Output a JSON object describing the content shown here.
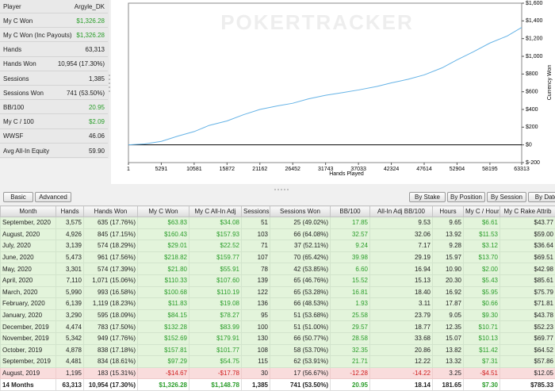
{
  "stats": {
    "rows": [
      [
        "Player",
        "Argyle_DK"
      ],
      [
        "My C Won",
        "$1,326.28"
      ],
      [
        "My C Won (Inc Payouts)",
        "$1,326.28"
      ],
      [
        "Hands",
        "63,313"
      ],
      [
        "Hands Won",
        "10,954 (17.30%)"
      ],
      [
        "Sessions",
        "1,385"
      ],
      [
        "Sessions Won",
        "741 (53.50%)"
      ],
      [
        "BB/100",
        "20.95"
      ],
      [
        "My C / 100",
        "$2.09"
      ],
      [
        "WWSF",
        "46.06"
      ],
      [
        "Avg All-In Equity",
        "59.90"
      ]
    ]
  },
  "chart_data": {
    "type": "line",
    "watermark": "POKERTRACKER",
    "x_label": "Hands Played",
    "y_label": "Currency Won",
    "x": [
      1,
      2600,
      5291,
      8000,
      10581,
      13000,
      15872,
      18500,
      21162,
      24000,
      26452,
      29000,
      31743,
      34500,
      37033,
      40000,
      42324,
      45000,
      47614,
      50500,
      52904,
      55500,
      58195,
      61000,
      63313
    ],
    "series": [
      {
        "color": "#66b3e6",
        "values": [
          0,
          10,
          40,
          100,
          150,
          220,
          270,
          340,
          400,
          440,
          470,
          520,
          560,
          590,
          620,
          660,
          700,
          740,
          790,
          870,
          960,
          1050,
          1150,
          1230,
          1326
        ]
      }
    ],
    "xlim": [
      1,
      63313
    ],
    "xticks": [
      1,
      5291,
      10581,
      15872,
      21162,
      26452,
      31743,
      37033,
      42324,
      47614,
      52904,
      58195,
      63313
    ],
    "ylim": [
      -200,
      1600
    ],
    "yticks": [
      {
        "value": -200,
        "label": "$-200"
      },
      {
        "value": 0,
        "label": "$0"
      },
      {
        "value": 200,
        "label": "$200"
      },
      {
        "value": 400,
        "label": "$400"
      },
      {
        "value": 600,
        "label": "$600"
      },
      {
        "value": 800,
        "label": "$800"
      },
      {
        "value": 1000,
        "label": "$1,000"
      },
      {
        "value": 1200,
        "label": "$1,200"
      },
      {
        "value": 1400,
        "label": "$1,400"
      },
      {
        "value": 1600,
        "label": "$1,600"
      }
    ]
  },
  "tabs": {
    "left": [
      "Basic",
      "Advanced"
    ],
    "right": [
      "By Stake",
      "By Position",
      "By Session",
      "By Date"
    ]
  },
  "table": {
    "columns": [
      "Month",
      "Hands",
      "Hands Won",
      "My C Won",
      "My C All-In Adj",
      "Sessions",
      "Sessions Won",
      "BB/100",
      "All-In Adj BB/100",
      "Hours",
      "My C / Hour",
      "My C Rake Attrib"
    ],
    "rows": [
      [
        "September, 2020",
        "3,575",
        "635 (17.76%)",
        "$63.83",
        "$34.08",
        "51",
        "25 (49.02%)",
        "17.85",
        "9.53",
        "9.65",
        "$6.61",
        "$43.77"
      ],
      [
        "August, 2020",
        "4,926",
        "845 (17.15%)",
        "$160.43",
        "$157.93",
        "103",
        "66 (64.08%)",
        "32.57",
        "32.06",
        "13.92",
        "$11.53",
        "$59.00"
      ],
      [
        "July, 2020",
        "3,139",
        "574 (18.29%)",
        "$29.01",
        "$22.52",
        "71",
        "37 (52.11%)",
        "9.24",
        "7.17",
        "9.28",
        "$3.12",
        "$36.64"
      ],
      [
        "June, 2020",
        "5,473",
        "961 (17.56%)",
        "$218.82",
        "$159.77",
        "107",
        "70 (65.42%)",
        "39.98",
        "29.19",
        "15.97",
        "$13.70",
        "$69.51"
      ],
      [
        "May, 2020",
        "3,301",
        "574 (17.39%)",
        "$21.80",
        "$55.91",
        "78",
        "42 (53.85%)",
        "6.60",
        "16.94",
        "10.90",
        "$2.00",
        "$42.98"
      ],
      [
        "April, 2020",
        "7,110",
        "1,071 (15.06%)",
        "$110.33",
        "$107.60",
        "139",
        "65 (46.76%)",
        "15.52",
        "15.13",
        "20.30",
        "$5.43",
        "$85.61"
      ],
      [
        "March, 2020",
        "5,990",
        "993 (16.58%)",
        "$100.68",
        "$110.19",
        "122",
        "65 (53.28%)",
        "16.81",
        "18.40",
        "16.92",
        "$5.95",
        "$75.79"
      ],
      [
        "February, 2020",
        "6,139",
        "1,119 (18.23%)",
        "$11.83",
        "$19.08",
        "136",
        "66 (48.53%)",
        "1.93",
        "3.11",
        "17.87",
        "$0.66",
        "$71.81"
      ],
      [
        "January, 2020",
        "3,290",
        "595 (18.09%)",
        "$84.15",
        "$78.27",
        "95",
        "51 (53.68%)",
        "25.58",
        "23.79",
        "9.05",
        "$9.30",
        "$43.78"
      ],
      [
        "December, 2019",
        "4,474",
        "783 (17.50%)",
        "$132.28",
        "$83.99",
        "100",
        "51 (51.00%)",
        "29.57",
        "18.77",
        "12.35",
        "$10.71",
        "$52.23"
      ],
      [
        "November, 2019",
        "5,342",
        "949 (17.76%)",
        "$152.69",
        "$179.91",
        "130",
        "66 (50.77%)",
        "28.58",
        "33.68",
        "15.07",
        "$10.13",
        "$69.77"
      ],
      [
        "October, 2019",
        "4,878",
        "838 (17.18%)",
        "$157.81",
        "$101.77",
        "108",
        "58 (53.70%)",
        "32.35",
        "20.86",
        "13.82",
        "$11.42",
        "$64.52"
      ],
      [
        "September, 2019",
        "4,481",
        "834 (18.61%)",
        "$97.29",
        "$54.75",
        "115",
        "62 (53.91%)",
        "21.71",
        "12.22",
        "13.32",
        "$7.31",
        "$57.86"
      ],
      [
        "August, 2019",
        "1,195",
        "183 (15.31%)",
        "-$14.67",
        "-$17.78",
        "30",
        "17 (56.67%)",
        "-12.28",
        "-14.22",
        "3.25",
        "-$4.51",
        "$12.05"
      ]
    ],
    "total": [
      "14 Months",
      "63,313",
      "10,954 (17.30%)",
      "$1,326.28",
      "$1,148.78",
      "1,385",
      "741 (53.50%)",
      "20.95",
      "18.14",
      "181.65",
      "$7.30",
      "$785.33"
    ]
  }
}
